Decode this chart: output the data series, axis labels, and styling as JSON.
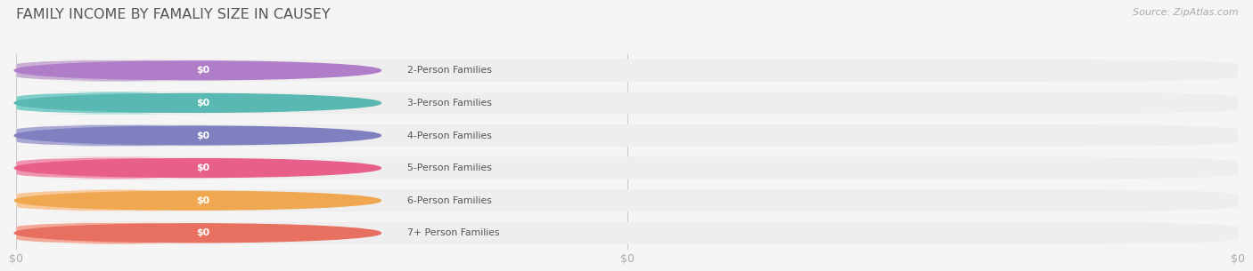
{
  "title": "FAMILY INCOME BY FAMALIY SIZE IN CAUSEY",
  "source": "Source: ZipAtlas.com",
  "categories": [
    "2-Person Families",
    "3-Person Families",
    "4-Person Families",
    "5-Person Families",
    "6-Person Families",
    "7+ Person Families"
  ],
  "values": [
    0,
    0,
    0,
    0,
    0,
    0
  ],
  "bar_colors": [
    "#c9afd4",
    "#7ecdc8",
    "#a9a8d4",
    "#f095b0",
    "#f8c89a",
    "#f4a898"
  ],
  "dot_colors": [
    "#b07ec8",
    "#5ab8b2",
    "#8080c0",
    "#e8608a",
    "#f0a850",
    "#e87060"
  ],
  "bg_color": "#f5f5f5",
  "bar_bg_color": "#eeeeee",
  "title_color": "#555555",
  "source_color": "#aaaaaa",
  "label_text_color": "#555555",
  "value_text_color": "#ffffff",
  "tick_label_color": "#aaaaaa",
  "figsize": [
    14.06,
    3.05
  ],
  "dpi": 100
}
